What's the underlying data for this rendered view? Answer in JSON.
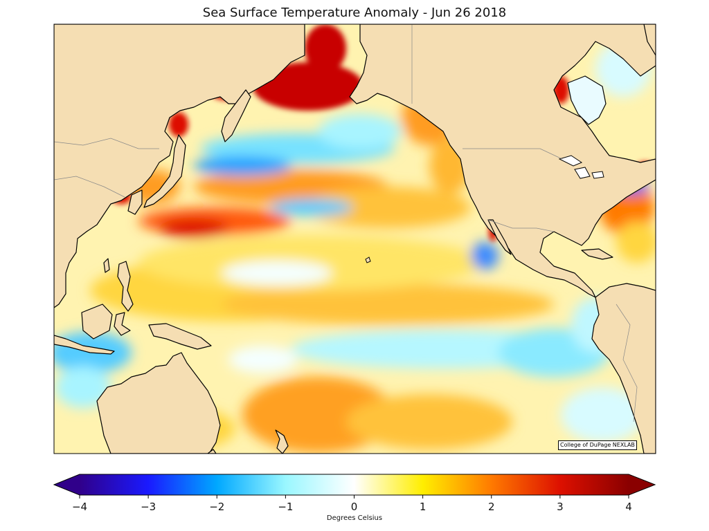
{
  "title": "Sea Surface Temperature Anomaly - Jun 26 2018",
  "credit": "College of DuPage NEXLAB",
  "colorbar": {
    "label": "Degrees Celsius",
    "min": -4,
    "max": 4,
    "ticks": [
      {
        "value": -4,
        "label": "−4"
      },
      {
        "value": -3,
        "label": "−3"
      },
      {
        "value": -2,
        "label": "−2"
      },
      {
        "value": -1,
        "label": "−1"
      },
      {
        "value": 0,
        "label": "0"
      },
      {
        "value": 1,
        "label": "1"
      },
      {
        "value": 2,
        "label": "2"
      },
      {
        "value": 3,
        "label": "3"
      },
      {
        "value": 4,
        "label": "4"
      }
    ],
    "stops": [
      {
        "value": -4,
        "color": "#30008a"
      },
      {
        "value": -3,
        "color": "#1a1aff"
      },
      {
        "value": -2,
        "color": "#00a8ff"
      },
      {
        "value": -1,
        "color": "#9af7ff"
      },
      {
        "value": 0,
        "color": "#ffffff"
      },
      {
        "value": 1,
        "color": "#ffee00"
      },
      {
        "value": 2,
        "color": "#ff7a00"
      },
      {
        "value": 3,
        "color": "#dd1000"
      },
      {
        "value": 4,
        "color": "#8a0000"
      }
    ],
    "extend": "both"
  },
  "colors": {
    "land": "#f5deb3",
    "coastline": "#000000",
    "borders": "#888888"
  }
}
